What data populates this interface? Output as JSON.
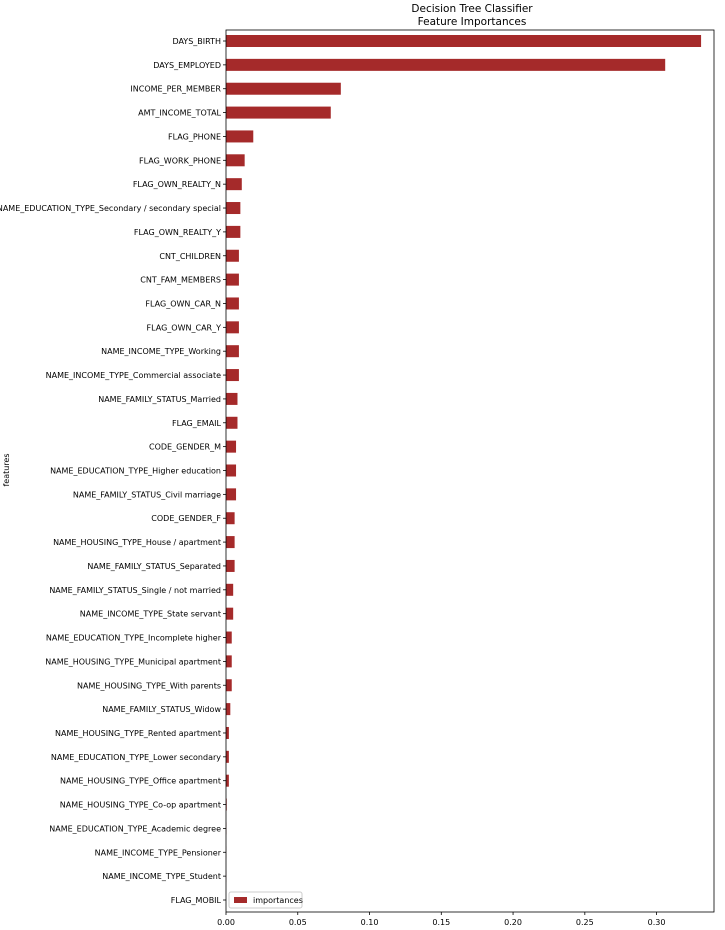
{
  "chart_data": {
    "type": "bar",
    "orientation": "horizontal",
    "title": "Decision Tree Classifier",
    "subtitle": "Feature Importances",
    "xlabel": "",
    "ylabel": "features",
    "xlim": [
      0.0,
      0.34
    ],
    "x_ticks": [
      "0.00",
      "0.05",
      "0.10",
      "0.15",
      "0.20",
      "0.25",
      "0.30"
    ],
    "grid": false,
    "legend_position": "bottom-left",
    "bar_color": "#a52a2a",
    "categories": [
      "DAYS_BIRTH",
      "DAYS_EMPLOYED",
      "INCOME_PER_MEMBER",
      "AMT_INCOME_TOTAL",
      "FLAG_PHONE",
      "FLAG_WORK_PHONE",
      "FLAG_OWN_REALTY_N",
      "NAME_EDUCATION_TYPE_Secondary / secondary special",
      "FLAG_OWN_REALTY_Y",
      "CNT_CHILDREN",
      "CNT_FAM_MEMBERS",
      "FLAG_OWN_CAR_N",
      "FLAG_OWN_CAR_Y",
      "NAME_INCOME_TYPE_Working",
      "NAME_INCOME_TYPE_Commercial associate",
      "NAME_FAMILY_STATUS_Married",
      "FLAG_EMAIL",
      "CODE_GENDER_M",
      "NAME_EDUCATION_TYPE_Higher education",
      "NAME_FAMILY_STATUS_Civil marriage",
      "CODE_GENDER_F",
      "NAME_HOUSING_TYPE_House / apartment",
      "NAME_FAMILY_STATUS_Separated",
      "NAME_FAMILY_STATUS_Single / not married",
      "NAME_INCOME_TYPE_State servant",
      "NAME_EDUCATION_TYPE_Incomplete higher",
      "NAME_HOUSING_TYPE_Municipal apartment",
      "NAME_HOUSING_TYPE_With parents",
      "NAME_FAMILY_STATUS_Widow",
      "NAME_HOUSING_TYPE_Rented apartment",
      "NAME_EDUCATION_TYPE_Lower secondary",
      "NAME_HOUSING_TYPE_Office apartment",
      "NAME_HOUSING_TYPE_Co-op apartment",
      "NAME_EDUCATION_TYPE_Academic degree",
      "NAME_INCOME_TYPE_Pensioner",
      "NAME_INCOME_TYPE_Student",
      "FLAG_MOBIL"
    ],
    "series": [
      {
        "name": "importances",
        "values": [
          0.331,
          0.306,
          0.08,
          0.073,
          0.019,
          0.013,
          0.011,
          0.01,
          0.01,
          0.009,
          0.009,
          0.009,
          0.009,
          0.009,
          0.009,
          0.008,
          0.008,
          0.007,
          0.007,
          0.007,
          0.006,
          0.006,
          0.006,
          0.005,
          0.005,
          0.004,
          0.004,
          0.004,
          0.003,
          0.002,
          0.002,
          0.002,
          0.0005,
          0.0002,
          0.0001,
          0.0001,
          0.0
        ]
      }
    ]
  }
}
